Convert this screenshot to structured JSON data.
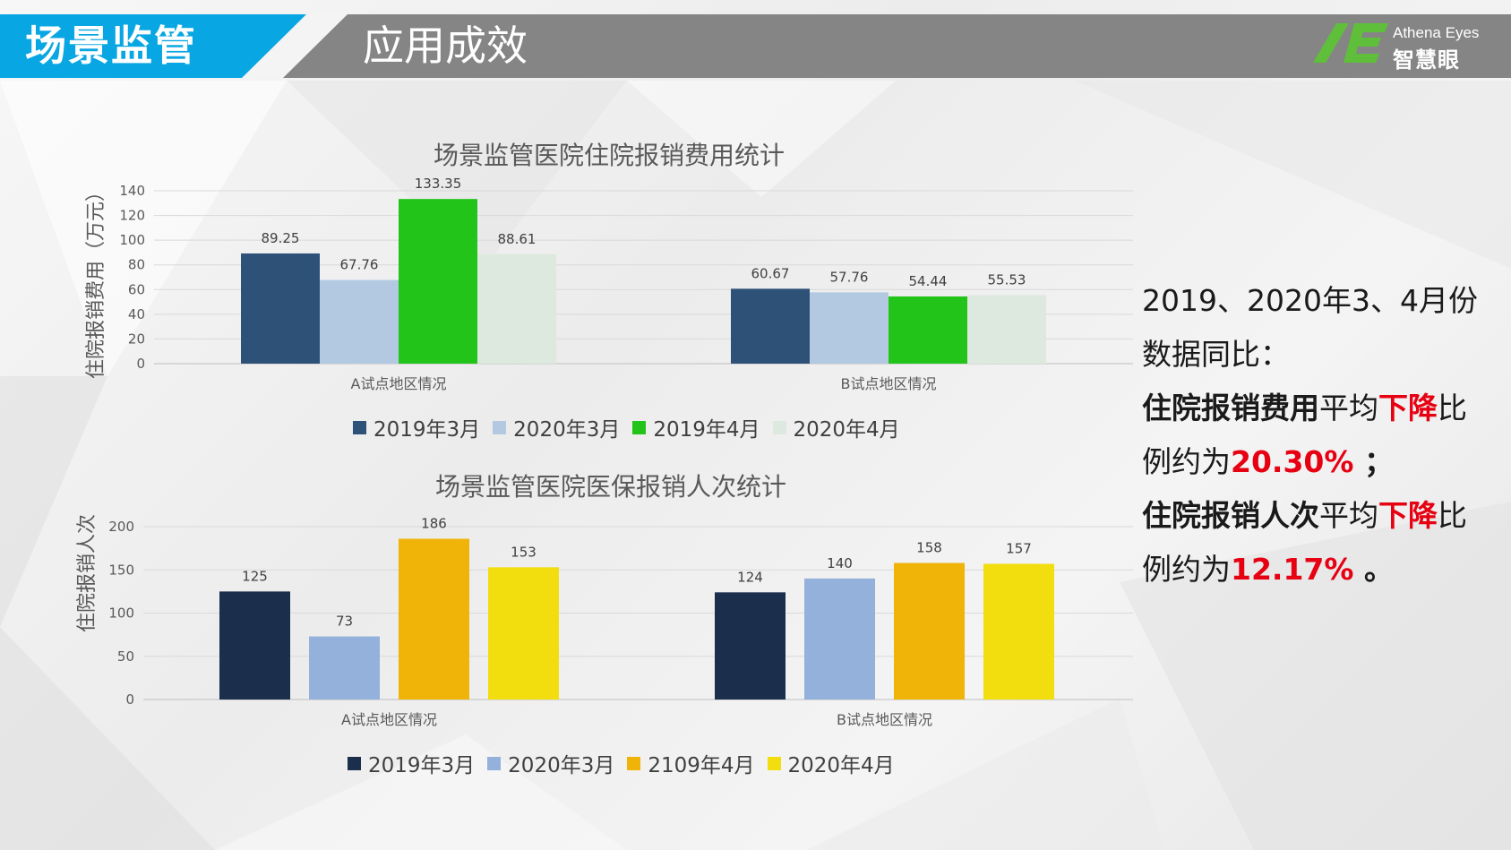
{
  "header": {
    "section_title": "场景监管",
    "page_title": "应用成效",
    "logo_en": "Athena Eyes",
    "logo_cn": "智慧眼",
    "colors": {
      "cyan": "#08a6e2",
      "gray": "#858585",
      "logo_green": "#5fbf3a"
    }
  },
  "chart_data": [
    {
      "type": "bar",
      "title": "场景监管医院住院报销费用统计",
      "ylabel": "住院报销费用（万元）",
      "xlabel": "",
      "categories": [
        "A试点地区情况",
        "B试点地区情况"
      ],
      "series": [
        {
          "name": "2019年3月",
          "values": [
            89.25,
            60.67
          ],
          "color": "#2e5177"
        },
        {
          "name": "2020年3月",
          "values": [
            67.76,
            57.76
          ],
          "color": "#b3c9e2"
        },
        {
          "name": "2019年4月",
          "values": [
            133.35,
            54.44
          ],
          "color": "#22c41a"
        },
        {
          "name": "2020年4月",
          "values": [
            88.61,
            55.53
          ],
          "color": "#dde8de"
        }
      ],
      "ylim": [
        0,
        140
      ],
      "yticks": [
        0,
        20,
        40,
        60,
        80,
        100,
        120,
        140
      ],
      "grid": true,
      "legend": "bottom"
    },
    {
      "type": "bar",
      "title": "场景监管医院医保报销人次统计",
      "ylabel": "住院报销人次",
      "xlabel": "",
      "categories": [
        "A试点地区情况",
        "B试点地区情况"
      ],
      "series": [
        {
          "name": "2019年3月",
          "values": [
            125,
            124
          ],
          "color": "#1b2e4b"
        },
        {
          "name": "2020年3月",
          "values": [
            73,
            140
          ],
          "color": "#93b1db"
        },
        {
          "name": "2109年4月",
          "values": [
            186,
            158
          ],
          "color": "#f0b409"
        },
        {
          "name": "2020年4月",
          "values": [
            153,
            157
          ],
          "color": "#f2dd0e"
        }
      ],
      "ylim": [
        0,
        200
      ],
      "yticks": [
        0,
        50,
        100,
        150,
        200
      ],
      "grid": true,
      "legend": "bottom"
    }
  ],
  "summary": {
    "line1": "2019、2020年3、4月份",
    "line2": "数据同比：",
    "cost_label": "住院报销费用",
    "avg_text": "平均",
    "decline": "下降",
    "ratio_tail": "比",
    "ratio_prefix": "例约为",
    "cost_pct": "20.30%",
    "sep1": " ；",
    "count_label": "住院报销人次",
    "count_pct": "12.17%",
    "sep2": " 。"
  }
}
